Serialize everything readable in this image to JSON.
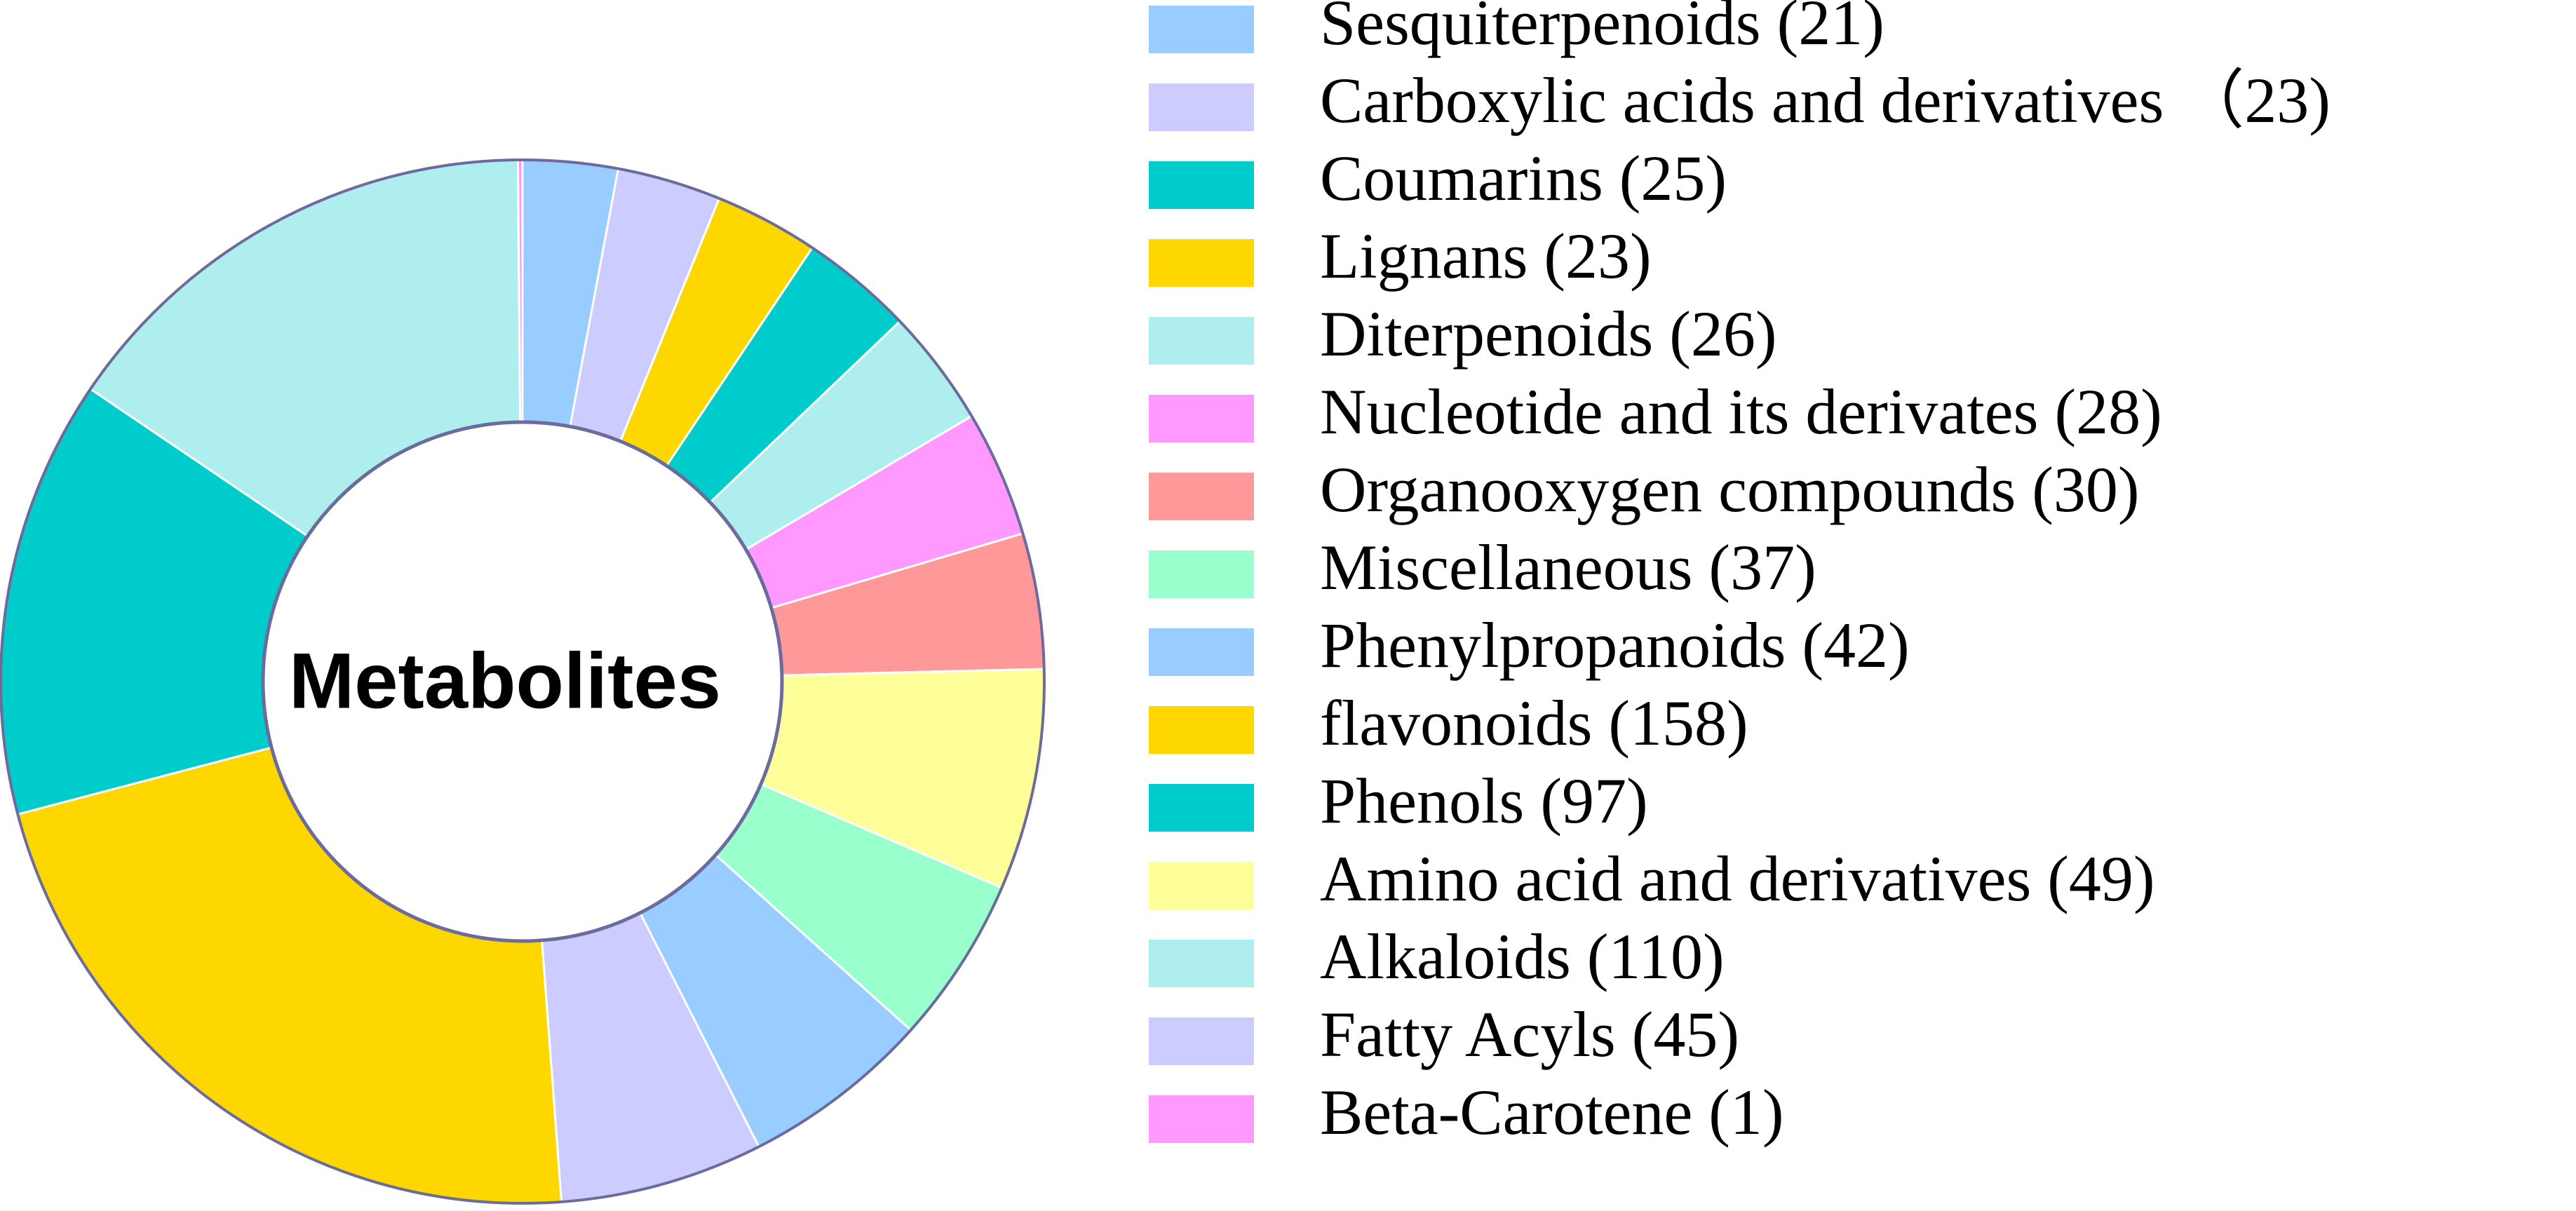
{
  "chart_data": {
    "type": "pie",
    "center_label": "Metabolites",
    "ring_border_color": "#6B6B9E",
    "slice_border_color": "#ffffff",
    "slices": [
      {
        "label": "Sesquiterpenoids",
        "value": 21,
        "legend_text": "Sesquiterpenoids  (21)",
        "color": "#99CCFF"
      },
      {
        "label": "Carboxylic acids and derivatives",
        "value": 23,
        "legend_text": "Carboxylic acids and derivatives （23)",
        "color": "#CCCCFF"
      },
      {
        "label": "Lignans",
        "value": 23,
        "legend_text": "Lignans (23)",
        "color": "#FFD700"
      },
      {
        "label": "Coumarins",
        "value": 25,
        "legend_text": "Coumarins (25)",
        "color": "#00CCCC"
      },
      {
        "label": "Diterpenoids",
        "value": 26,
        "legend_text": "Diterpenoids (26)",
        "color": "#AEEEEE"
      },
      {
        "label": "Nucleotide and its derivates",
        "value": 28,
        "legend_text": "Nucleotide and its derivates (28)",
        "color": "#FF99FF"
      },
      {
        "label": "Organooxygen compounds",
        "value": 30,
        "legend_text": "Organooxygen compounds (30)",
        "color": "#FF9999"
      },
      {
        "label": "Amino acid and derivatives",
        "value": 49,
        "legend_text": "Amino acid and derivatives (49)",
        "color": "#FFFF99"
      },
      {
        "label": "Miscellaneous",
        "value": 37,
        "legend_text": "Miscellaneous (37)",
        "color": "#99FFCC"
      },
      {
        "label": "Phenylpropanoids",
        "value": 42,
        "legend_text": "Phenylpropanoids (42)",
        "color": "#99CCFF"
      },
      {
        "label": "Fatty Acyls",
        "value": 45,
        "legend_text": "Fatty Acyls (45)",
        "color": "#CCCCFF"
      },
      {
        "label": "flavonoids",
        "value": 158,
        "legend_text": "flavonoids (158)",
        "color": "#FFD700"
      },
      {
        "label": "Phenols",
        "value": 97,
        "legend_text": "Phenols (97)",
        "color": "#00CCCC"
      },
      {
        "label": "Alkaloids",
        "value": 110,
        "legend_text": "Alkaloids (110)",
        "color": "#AEEEEE"
      },
      {
        "label": "Beta-Carotene",
        "value": 1,
        "legend_text": "Beta-Carotene (1)",
        "color": "#FF99FF"
      }
    ],
    "legend_order": [
      "Sesquiterpenoids",
      "Carboxylic acids and derivatives",
      "Coumarins",
      "Lignans",
      "Diterpenoids",
      "Nucleotide and its derivates",
      "Organooxygen compounds",
      "Miscellaneous",
      "Phenylpropanoids",
      "flavonoids",
      "Phenols",
      "Amino acid and derivatives",
      "Alkaloids",
      "Fatty Acyls",
      "Beta-Carotene"
    ],
    "legend_position": "right"
  }
}
